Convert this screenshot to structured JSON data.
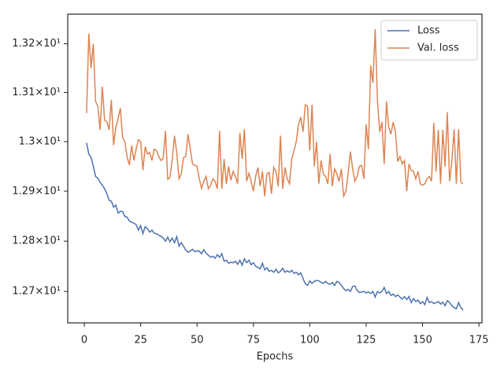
{
  "chart_data": {
    "type": "line",
    "xlabel": "Epochs",
    "yscale": "log",
    "legend": "upper right",
    "xlim": [
      -7.35,
      176.35
    ],
    "xticks": [
      0,
      25,
      50,
      75,
      100,
      125,
      150,
      175
    ],
    "ylim": [
      12.638,
      13.261
    ],
    "yticks": [
      {
        "value": 12.7,
        "label": "1.27×10¹"
      },
      {
        "value": 12.8,
        "label": "1.28×10¹"
      },
      {
        "value": 12.9,
        "label": "1.29×10¹"
      },
      {
        "value": 13.0,
        "label": "1.3×10¹"
      },
      {
        "value": 13.1,
        "label": "1.31×10¹"
      },
      {
        "value": 13.2,
        "label": "1.32×10¹"
      }
    ],
    "x": [
      1,
      2,
      3,
      4,
      5,
      6,
      7,
      8,
      9,
      10,
      11,
      12,
      13,
      14,
      15,
      16,
      17,
      18,
      19,
      20,
      21,
      22,
      23,
      24,
      25,
      26,
      27,
      28,
      29,
      30,
      31,
      32,
      33,
      34,
      35,
      36,
      37,
      38,
      39,
      40,
      41,
      42,
      43,
      44,
      45,
      46,
      47,
      48,
      49,
      50,
      51,
      52,
      53,
      54,
      55,
      56,
      57,
      58,
      59,
      60,
      61,
      62,
      63,
      64,
      65,
      66,
      67,
      68,
      69,
      70,
      71,
      72,
      73,
      74,
      75,
      76,
      77,
      78,
      79,
      80,
      81,
      82,
      83,
      84,
      85,
      86,
      87,
      88,
      89,
      90,
      91,
      92,
      93,
      94,
      95,
      96,
      97,
      98,
      99,
      100,
      101,
      102,
      103,
      104,
      105,
      106,
      107,
      108,
      109,
      110,
      111,
      112,
      113,
      114,
      115,
      116,
      117,
      118,
      119,
      120,
      121,
      122,
      123,
      124,
      125,
      126,
      127,
      128,
      129,
      130,
      131,
      132,
      133,
      134,
      135,
      136,
      137,
      138,
      139,
      140,
      141,
      142,
      143,
      144,
      145,
      146,
      147,
      148,
      149,
      150,
      151,
      152,
      153,
      154,
      155,
      156,
      157,
      158,
      159,
      160,
      161,
      162,
      163,
      164,
      165,
      166,
      167,
      168
    ],
    "series": [
      {
        "name": "Loss",
        "color": "#4c72b0",
        "values": [
          12.998,
          12.975,
          12.968,
          12.95,
          12.93,
          12.926,
          12.918,
          12.912,
          12.905,
          12.895,
          12.882,
          12.88,
          12.868,
          12.872,
          12.856,
          12.86,
          12.859,
          12.849,
          12.848,
          12.84,
          12.838,
          12.836,
          12.833,
          12.822,
          12.831,
          12.815,
          12.829,
          12.825,
          12.818,
          12.822,
          12.816,
          12.815,
          12.812,
          12.81,
          12.806,
          12.8,
          12.808,
          12.799,
          12.806,
          12.797,
          12.809,
          12.79,
          12.797,
          12.79,
          12.782,
          12.778,
          12.78,
          12.784,
          12.779,
          12.781,
          12.78,
          12.775,
          12.783,
          12.776,
          12.772,
          12.768,
          12.77,
          12.766,
          12.773,
          12.768,
          12.775,
          12.76,
          12.762,
          12.756,
          12.758,
          12.757,
          12.76,
          12.754,
          12.762,
          12.752,
          12.765,
          12.757,
          12.762,
          12.753,
          12.757,
          12.75,
          12.748,
          12.745,
          12.756,
          12.743,
          12.747,
          12.74,
          12.742,
          12.738,
          12.744,
          12.737,
          12.74,
          12.746,
          12.738,
          12.741,
          12.738,
          12.742,
          12.736,
          12.738,
          12.733,
          12.737,
          12.726,
          12.715,
          12.712,
          12.721,
          12.716,
          12.72,
          12.722,
          12.721,
          12.718,
          12.716,
          12.72,
          12.716,
          12.714,
          12.718,
          12.712,
          12.72,
          12.718,
          12.712,
          12.706,
          12.702,
          12.704,
          12.7,
          12.71,
          12.711,
          12.702,
          12.698,
          12.699,
          12.7,
          12.697,
          12.699,
          12.696,
          12.7,
          12.689,
          12.7,
          12.697,
          12.7,
          12.708,
          12.696,
          12.7,
          12.692,
          12.695,
          12.69,
          12.693,
          12.689,
          12.685,
          12.69,
          12.684,
          12.69,
          12.678,
          12.686,
          12.68,
          12.683,
          12.676,
          12.68,
          12.674,
          12.688,
          12.678,
          12.68,
          12.676,
          12.678,
          12.68,
          12.675,
          12.679,
          12.672,
          12.682,
          12.678,
          12.672,
          12.668,
          12.666,
          12.678,
          12.668,
          12.663
        ]
      },
      {
        "name": "Val. loss",
        "color": "#dd8452",
        "values": [
          13.058,
          13.221,
          13.15,
          13.2,
          13.082,
          13.072,
          13.024,
          13.112,
          13.044,
          13.04,
          13.024,
          13.085,
          12.993,
          13.03,
          13.047,
          13.068,
          13.008,
          13.0,
          12.968,
          12.953,
          12.992,
          12.962,
          12.985,
          13.004,
          13.0,
          12.942,
          12.99,
          12.975,
          12.978,
          12.962,
          12.985,
          12.982,
          12.97,
          12.962,
          12.966,
          13.022,
          12.924,
          12.928,
          12.964,
          13.012,
          12.978,
          12.925,
          12.935,
          12.968,
          12.97,
          13.015,
          12.985,
          12.955,
          12.952,
          12.95,
          12.925,
          12.906,
          12.92,
          12.93,
          12.905,
          12.912,
          12.925,
          12.92,
          12.905,
          13.022,
          12.905,
          12.965,
          12.915,
          12.95,
          12.922,
          12.94,
          12.93,
          12.915,
          13.018,
          12.965,
          13.025,
          12.92,
          12.936,
          12.92,
          12.9,
          12.93,
          12.948,
          12.91,
          12.94,
          12.89,
          12.935,
          12.938,
          12.895,
          12.948,
          12.94,
          12.91,
          13.012,
          12.905,
          12.948,
          12.925,
          12.915,
          12.965,
          12.982,
          13.0,
          13.035,
          13.05,
          13.02,
          13.075,
          13.072,
          12.982,
          13.075,
          12.95,
          13.0,
          12.915,
          12.962,
          12.935,
          12.93,
          12.915,
          12.975,
          12.91,
          12.945,
          12.935,
          12.92,
          12.945,
          12.89,
          12.9,
          12.935,
          12.98,
          12.945,
          12.92,
          12.93,
          12.95,
          12.952,
          12.925,
          13.035,
          12.985,
          13.155,
          13.12,
          13.23,
          13.085,
          13.02,
          13.04,
          12.955,
          13.082,
          13.03,
          13.015,
          13.04,
          13.02,
          12.96,
          12.97,
          12.955,
          12.962,
          12.9,
          12.955,
          12.942,
          12.94,
          12.925,
          12.94,
          12.915,
          12.912,
          12.915,
          12.925,
          12.93,
          12.92,
          13.038,
          12.94,
          13.024,
          12.915,
          13.024,
          12.95,
          13.06,
          12.92,
          12.96,
          13.025,
          12.915,
          13.025,
          12.918,
          12.915
        ]
      }
    ]
  }
}
